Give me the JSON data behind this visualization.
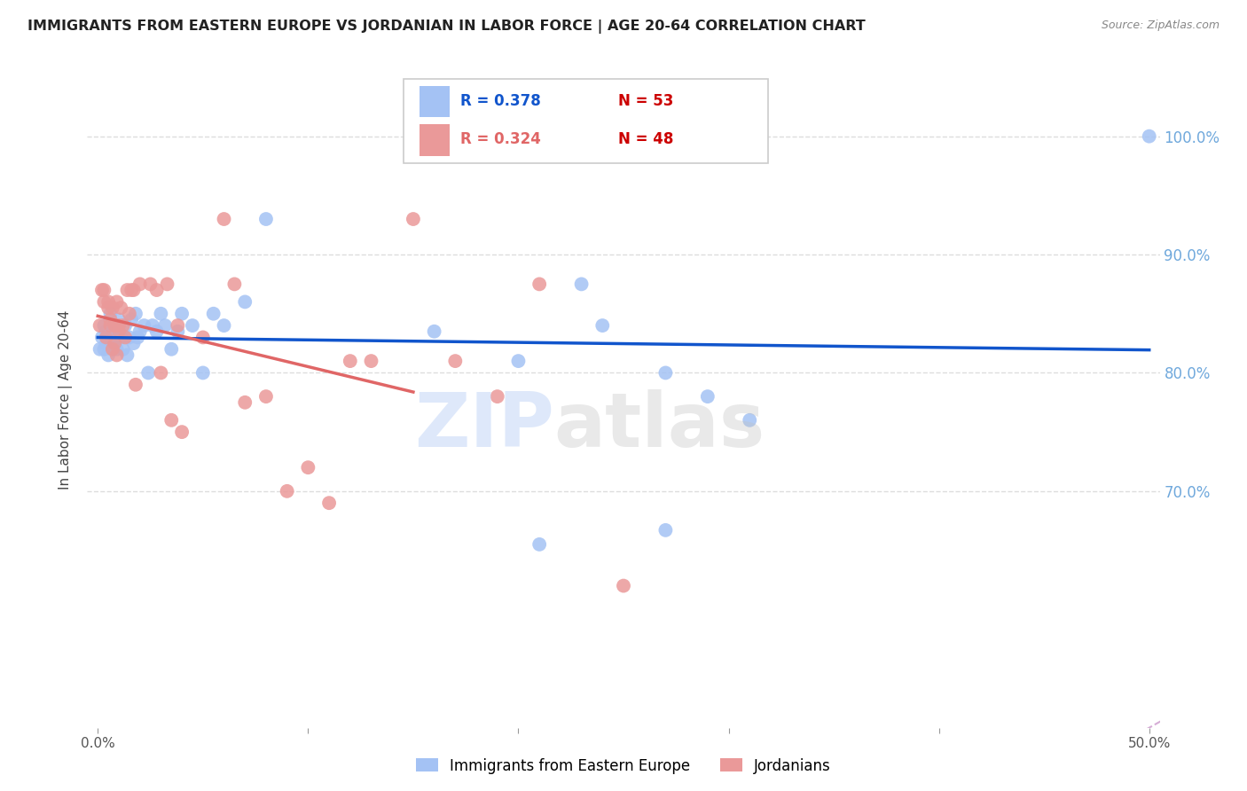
{
  "title": "IMMIGRANTS FROM EASTERN EUROPE VS JORDANIAN IN LABOR FORCE | AGE 20-64 CORRELATION CHART",
  "source": "Source: ZipAtlas.com",
  "ylabel": "In Labor Force | Age 20-64",
  "xlim": [
    -0.005,
    0.505
  ],
  "ylim": [
    0.5,
    1.055
  ],
  "xticks": [
    0.0,
    0.1,
    0.2,
    0.3,
    0.4,
    0.5
  ],
  "xticklabels": [
    "0.0%",
    "",
    "",
    "",
    "",
    "50.0%"
  ],
  "ytick_right_labels": [
    "100.0%",
    "90.0%",
    "80.0%",
    "70.0%"
  ],
  "ytick_right_values": [
    1.0,
    0.9,
    0.8,
    0.7
  ],
  "blue_R": 0.378,
  "blue_N": 53,
  "pink_R": 0.324,
  "pink_N": 48,
  "blue_color": "#a4c2f4",
  "pink_color": "#ea9999",
  "blue_line_color": "#1155cc",
  "pink_line_color": "#e06666",
  "ref_line_color": "#cc99cc",
  "watermark_zip_color": "#c9daf8",
  "watermark_atlas_color": "#c0c0c0",
  "legend_label_blue": "Immigrants from Eastern Europe",
  "legend_label_pink": "Jordanians",
  "blue_x": [
    0.001,
    0.002,
    0.003,
    0.003,
    0.004,
    0.004,
    0.005,
    0.005,
    0.006,
    0.006,
    0.007,
    0.007,
    0.008,
    0.008,
    0.009,
    0.009,
    0.01,
    0.01,
    0.011,
    0.012,
    0.013,
    0.014,
    0.015,
    0.016,
    0.017,
    0.018,
    0.019,
    0.02,
    0.022,
    0.024,
    0.026,
    0.028,
    0.03,
    0.032,
    0.035,
    0.038,
    0.04,
    0.045,
    0.05,
    0.055,
    0.06,
    0.07,
    0.08,
    0.16,
    0.2,
    0.23,
    0.24,
    0.27,
    0.29,
    0.31,
    0.21,
    0.27,
    0.5
  ],
  "blue_y": [
    0.82,
    0.83,
    0.84,
    0.82,
    0.835,
    0.825,
    0.83,
    0.815,
    0.85,
    0.825,
    0.835,
    0.82,
    0.84,
    0.825,
    0.83,
    0.82,
    0.835,
    0.845,
    0.83,
    0.82,
    0.84,
    0.815,
    0.83,
    0.845,
    0.825,
    0.85,
    0.83,
    0.835,
    0.84,
    0.8,
    0.84,
    0.835,
    0.85,
    0.84,
    0.82,
    0.835,
    0.85,
    0.84,
    0.8,
    0.85,
    0.84,
    0.86,
    0.93,
    0.835,
    0.81,
    0.875,
    0.84,
    0.8,
    0.78,
    0.76,
    0.655,
    0.667,
    1.0
  ],
  "pink_x": [
    0.001,
    0.002,
    0.003,
    0.003,
    0.004,
    0.005,
    0.005,
    0.006,
    0.006,
    0.007,
    0.007,
    0.008,
    0.008,
    0.009,
    0.009,
    0.01,
    0.01,
    0.011,
    0.012,
    0.013,
    0.014,
    0.015,
    0.016,
    0.017,
    0.018,
    0.02,
    0.025,
    0.028,
    0.03,
    0.033,
    0.035,
    0.038,
    0.04,
    0.05,
    0.06,
    0.065,
    0.07,
    0.08,
    0.09,
    0.1,
    0.11,
    0.12,
    0.13,
    0.15,
    0.17,
    0.19,
    0.21,
    0.25
  ],
  "pink_y": [
    0.84,
    0.87,
    0.87,
    0.86,
    0.83,
    0.86,
    0.855,
    0.845,
    0.84,
    0.855,
    0.82,
    0.84,
    0.825,
    0.86,
    0.815,
    0.84,
    0.835,
    0.855,
    0.84,
    0.83,
    0.87,
    0.85,
    0.87,
    0.87,
    0.79,
    0.875,
    0.875,
    0.87,
    0.8,
    0.875,
    0.76,
    0.84,
    0.75,
    0.83,
    0.93,
    0.875,
    0.775,
    0.78,
    0.7,
    0.72,
    0.69,
    0.81,
    0.81,
    0.93,
    0.81,
    0.78,
    0.875,
    0.62
  ],
  "background_color": "#ffffff",
  "grid_color": "#dddddd"
}
